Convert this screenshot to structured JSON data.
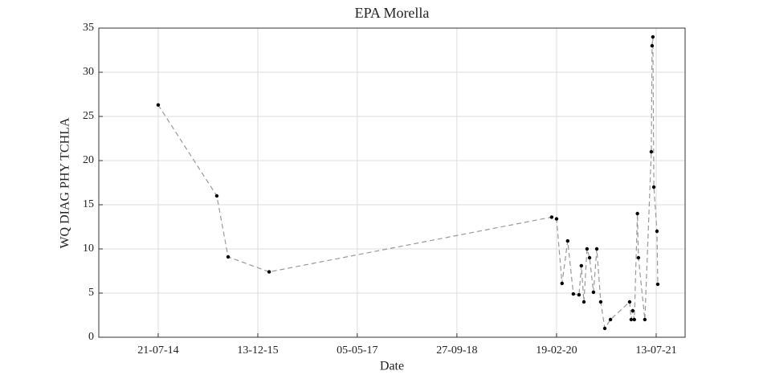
{
  "chart_data": {
    "type": "line",
    "title": "EPA Morella",
    "x_label": "Date",
    "y_label": "WQ DIAG PHY TCHLA",
    "x": [
      "2014-07-21",
      "2015-05-17",
      "2015-07-14",
      "2016-02-09",
      "2020-01-25",
      "2020-02-19",
      "2020-03-18",
      "2020-04-16",
      "2020-05-15",
      "2020-06-13",
      "2020-06-25",
      "2020-07-08",
      "2020-07-24",
      "2020-08-06",
      "2020-08-26",
      "2020-09-12",
      "2020-10-02",
      "2020-10-23",
      "2020-11-21",
      "2021-02-27",
      "2021-03-07",
      "2021-03-15",
      "2021-03-23",
      "2021-04-08",
      "2021-04-13",
      "2021-05-16",
      "2021-06-18",
      "2021-06-22",
      "2021-06-26",
      "2021-07-01",
      "2021-07-17",
      "2021-07-21"
    ],
    "values": [
      26.3,
      16,
      9.1,
      7.4,
      13.6,
      13.4,
      6.1,
      10.9,
      4.9,
      4.8,
      8.1,
      4.0,
      10.0,
      9.0,
      5.1,
      10.0,
      4.0,
      1.0,
      2.0,
      4.0,
      2.0,
      3.0,
      2.0,
      14.0,
      9.0,
      2.0,
      21.0,
      33.0,
      34.0,
      17.0,
      12.0,
      6.0
    ],
    "color": "#999999",
    "marker_color": "#000000",
    "line_style": "dashed",
    "xlim": [
      "2013-09-20",
      "2021-12-08"
    ],
    "xticks": [
      {
        "value": "2014-07-21",
        "label": "21-07-14"
      },
      {
        "value": "2015-12-13",
        "label": "13-12-15"
      },
      {
        "value": "2017-05-05",
        "label": "05-05-17"
      },
      {
        "value": "2018-09-27",
        "label": "27-09-18"
      },
      {
        "value": "2020-02-19",
        "label": "19-02-20"
      },
      {
        "value": "2021-07-13",
        "label": "13-07-21"
      }
    ],
    "ylim": [
      0,
      35
    ],
    "yticks": [
      0,
      5,
      10,
      15,
      20,
      25,
      30,
      35
    ],
    "grid": true
  }
}
